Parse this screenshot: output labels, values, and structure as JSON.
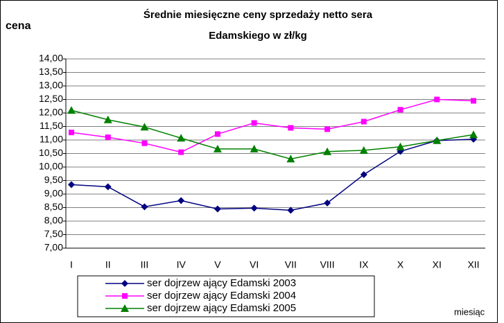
{
  "chart_data": {
    "type": "line",
    "title_lines": [
      "Średnie miesięczne ceny sprzedaży netto sera",
      "Edamskiego w zł/kg"
    ],
    "y_label": "cena",
    "x_label": "miesiąc",
    "categories": [
      "I",
      "II",
      "III",
      "IV",
      "V",
      "VI",
      "VII",
      "VIII",
      "IX",
      "X",
      "XI",
      "XII"
    ],
    "series": [
      {
        "name": "ser dojrzew ający Edamski 2003",
        "color": "#000080",
        "marker": "diamond",
        "values": [
          9.35,
          9.27,
          8.53,
          8.76,
          8.45,
          8.48,
          8.4,
          8.67,
          9.72,
          10.58,
          10.98,
          11.03
        ]
      },
      {
        "name": "ser dojrzew ający Edamski 2004",
        "color": "#ff00ff",
        "marker": "square",
        "values": [
          11.28,
          11.1,
          10.88,
          10.55,
          11.22,
          11.63,
          11.45,
          11.4,
          11.68,
          12.12,
          12.5,
          12.45
        ]
      },
      {
        "name": "ser dojrzew ający Edamski 2005",
        "color": "#008000",
        "marker": "triangle",
        "values": [
          12.1,
          11.75,
          11.48,
          11.07,
          10.67,
          10.67,
          10.3,
          10.57,
          10.62,
          10.75,
          10.98,
          11.2
        ]
      }
    ],
    "ylim": [
      7,
      14
    ],
    "yticks": [
      {
        "value": 7,
        "label": "7,00"
      },
      {
        "value": 7.5,
        "label": "7,50"
      },
      {
        "value": 8,
        "label": "8,00"
      },
      {
        "value": 8.5,
        "label": "8,50"
      },
      {
        "value": 9,
        "label": "9,00"
      },
      {
        "value": 9.5,
        "label": "9,50"
      },
      {
        "value": 10,
        "label": "10,00"
      },
      {
        "value": 10.5,
        "label": "10,50"
      },
      {
        "value": 11,
        "label": "11,00"
      },
      {
        "value": 11.5,
        "label": "11,50"
      },
      {
        "value": 12,
        "label": "12,00"
      },
      {
        "value": 12.5,
        "label": "12,50"
      },
      {
        "value": 13,
        "label": "13,00"
      },
      {
        "value": 13.5,
        "label": "13,50"
      },
      {
        "value": 14,
        "label": "14,00"
      }
    ],
    "grid": true
  }
}
